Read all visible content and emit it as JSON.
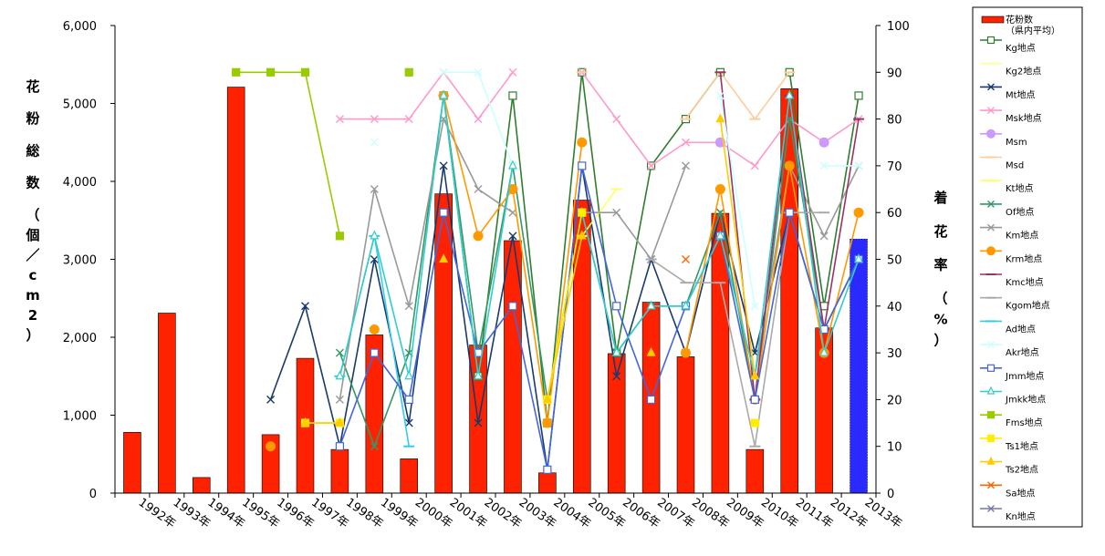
{
  "chart_data": {
    "type": "bar+line",
    "categories": [
      "1992年",
      "1993年",
      "1994年",
      "1995年",
      "1996年",
      "1997年",
      "1998年",
      "1999年",
      "2000年",
      "2001年",
      "2002年",
      "2003年",
      "2004年",
      "2005年",
      "2006年",
      "2007年",
      "2008年",
      "2009年",
      "2010年",
      "2011年",
      "2012年",
      "2013年"
    ],
    "ylabel_left": "花 粉 総 数 （個／cm2）",
    "ylabel_right": "着 花 率 （%）",
    "ylim_left": [
      0,
      6000
    ],
    "ylim_right": [
      0,
      100
    ],
    "yticks_left": [
      "0",
      "1,000",
      "2,000",
      "3,000",
      "4,000",
      "5,000",
      "6,000"
    ],
    "yticks_right": [
      "0",
      "10",
      "20",
      "30",
      "40",
      "50",
      "60",
      "70",
      "80",
      "90",
      "100"
    ],
    "grid": false,
    "legend_position": "right",
    "bar_series": {
      "name": "花粉数",
      "name_line2": "（県内平均）",
      "color": "#ff2200",
      "highlight_color": "#2a2aff",
      "values": [
        780,
        2310,
        200,
        5210,
        750,
        1730,
        560,
        2030,
        440,
        3840,
        1900,
        3240,
        260,
        3760,
        1790,
        2450,
        1750,
        3590,
        560,
        5190,
        2120,
        3260
      ]
    },
    "series": [
      {
        "name": "Kg地点",
        "color": "#2e7d2e",
        "marker": "square-open",
        "values": [
          null,
          null,
          null,
          null,
          null,
          null,
          null,
          null,
          null,
          85,
          25,
          85,
          15,
          90,
          30,
          70,
          80,
          90,
          null,
          90,
          40,
          85
        ]
      },
      {
        "name": "Kg2地点",
        "color": "#ffff99",
        "marker": "line",
        "values": [
          null,
          null,
          null,
          null,
          null,
          null,
          null,
          null,
          null,
          null,
          null,
          null,
          null,
          null,
          null,
          null,
          null,
          null,
          null,
          null,
          null,
          null
        ]
      },
      {
        "name": "Mt地点",
        "color": "#1a3a6b",
        "marker": "x",
        "values": [
          null,
          null,
          null,
          null,
          20,
          40,
          10,
          50,
          15,
          70,
          15,
          55,
          5,
          70,
          25,
          50,
          30,
          60,
          30,
          60,
          35,
          50
        ]
      },
      {
        "name": "Msk地点",
        "color": "#ff99cc",
        "marker": "x",
        "values": [
          null,
          null,
          null,
          null,
          null,
          null,
          80,
          80,
          80,
          90,
          80,
          90,
          null,
          90,
          80,
          70,
          75,
          75,
          70,
          80,
          75,
          80
        ]
      },
      {
        "name": "Msm",
        "color": "#cc99ff",
        "marker": "circle",
        "values": [
          null,
          null,
          null,
          null,
          null,
          null,
          null,
          null,
          null,
          null,
          null,
          null,
          null,
          null,
          null,
          null,
          null,
          75,
          null,
          null,
          75,
          null
        ]
      },
      {
        "name": "Msd",
        "color": "#ffcc99",
        "marker": "line",
        "values": [
          null,
          null,
          null,
          null,
          null,
          null,
          null,
          null,
          null,
          85,
          null,
          null,
          null,
          90,
          null,
          null,
          80,
          90,
          80,
          90,
          null,
          null
        ]
      },
      {
        "name": "Kt地点",
        "color": "#ffff66",
        "marker": "line",
        "values": [
          null,
          null,
          null,
          null,
          null,
          null,
          null,
          null,
          null,
          null,
          null,
          null,
          null,
          55,
          65,
          null,
          null,
          null,
          null,
          null,
          null,
          null
        ]
      },
      {
        "name": "Of地点",
        "color": "#339966",
        "marker": "x",
        "values": [
          null,
          null,
          null,
          null,
          null,
          null,
          30,
          10,
          30,
          85,
          30,
          70,
          20,
          60,
          30,
          40,
          40,
          60,
          20,
          80,
          35,
          50
        ]
      },
      {
        "name": "Km地点",
        "color": "#999999",
        "marker": "x",
        "values": [
          null,
          null,
          null,
          null,
          null,
          null,
          20,
          65,
          40,
          80,
          65,
          60,
          null,
          60,
          60,
          50,
          70,
          null,
          25,
          70,
          55,
          70
        ]
      },
      {
        "name": "Krm地点",
        "color": "#ff9900",
        "marker": "circle",
        "values": [
          null,
          null,
          null,
          null,
          10,
          null,
          null,
          35,
          null,
          85,
          55,
          65,
          15,
          75,
          null,
          null,
          30,
          65,
          20,
          70,
          30,
          60
        ]
      },
      {
        "name": "Kmc地点",
        "color": "#993366",
        "marker": "line",
        "values": [
          null,
          null,
          null,
          null,
          null,
          null,
          null,
          null,
          null,
          null,
          null,
          null,
          null,
          null,
          null,
          null,
          null,
          90,
          20,
          85,
          35,
          80
        ]
      },
      {
        "name": "Kgom地点",
        "color": "#aaaaaa",
        "marker": "line",
        "values": [
          null,
          null,
          null,
          null,
          null,
          null,
          null,
          null,
          null,
          null,
          null,
          null,
          null,
          null,
          null,
          50,
          45,
          45,
          10,
          60,
          60,
          null
        ]
      },
      {
        "name": "Ad地点",
        "color": "#33ccee",
        "marker": "line",
        "values": [
          null,
          null,
          null,
          null,
          null,
          null,
          25,
          55,
          10,
          null,
          null,
          null,
          null,
          null,
          null,
          null,
          null,
          null,
          null,
          null,
          null,
          null
        ]
      },
      {
        "name": "Akr地点",
        "color": "#ccffff",
        "marker": "x",
        "values": [
          null,
          null,
          null,
          null,
          null,
          null,
          null,
          75,
          null,
          90,
          90,
          70,
          null,
          null,
          null,
          null,
          null,
          85,
          40,
          null,
          70,
          70
        ]
      },
      {
        "name": "Jmm地点",
        "color": "#4466dd",
        "marker": "square-open",
        "values": [
          null,
          null,
          null,
          null,
          null,
          null,
          10,
          30,
          20,
          60,
          30,
          40,
          5,
          70,
          40,
          20,
          40,
          55,
          20,
          60,
          35,
          50
        ]
      },
      {
        "name": "Jmkk地点",
        "color": "#33cccc",
        "marker": "triangle-open",
        "values": [
          null,
          null,
          null,
          null,
          null,
          null,
          25,
          55,
          25,
          85,
          25,
          70,
          null,
          60,
          30,
          40,
          40,
          55,
          25,
          85,
          30,
          50
        ]
      },
      {
        "name": "Fms地点",
        "color": "#99cc00",
        "marker": "square",
        "values": [
          null,
          null,
          null,
          90,
          90,
          90,
          55,
          null,
          90,
          null,
          null,
          null,
          null,
          null,
          null,
          null,
          null,
          null,
          null,
          null,
          null,
          null
        ]
      },
      {
        "name": "Ts1地点",
        "color": "#ffee00",
        "marker": "square",
        "values": [
          null,
          null,
          null,
          null,
          null,
          15,
          15,
          null,
          null,
          null,
          null,
          null,
          20,
          60,
          null,
          null,
          null,
          null,
          15,
          null,
          null,
          null
        ]
      },
      {
        "name": "Ts2地点",
        "color": "#ffcc00",
        "marker": "triangle",
        "values": [
          null,
          null,
          null,
          null,
          null,
          15,
          15,
          null,
          null,
          50,
          null,
          null,
          20,
          55,
          null,
          30,
          null,
          80,
          25,
          null,
          null,
          null
        ]
      },
      {
        "name": "Sa地点",
        "color": "#ff6600",
        "marker": "x",
        "values": [
          null,
          null,
          null,
          null,
          null,
          null,
          null,
          null,
          null,
          null,
          null,
          null,
          null,
          null,
          null,
          null,
          50,
          null,
          null,
          null,
          null,
          null
        ]
      },
      {
        "name": "Kn地点",
        "color": "#7777aa",
        "marker": "x",
        "values": [
          null,
          null,
          null,
          null,
          null,
          null,
          null,
          null,
          null,
          null,
          null,
          null,
          null,
          null,
          null,
          null,
          null,
          null,
          null,
          null,
          null,
          null
        ]
      }
    ]
  }
}
